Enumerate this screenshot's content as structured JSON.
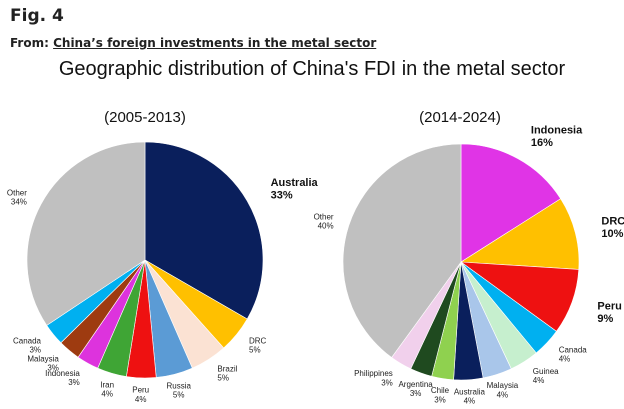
{
  "header": {
    "fig_label": "Fig. 4",
    "from_prefix": "From:",
    "from_link": "China’s foreign investments in the metal sector"
  },
  "chart_data": [
    {
      "type": "pie",
      "title": "Geographic distribution of China's FDI in the metal sector",
      "subtitle": "(2005-2013)",
      "slices": [
        {
          "label": "Australia",
          "pct_label": "33%",
          "value": 33,
          "color": "#0a1f5c",
          "emphasis": true
        },
        {
          "label": "DRC",
          "pct_label": "5%",
          "value": 5,
          "color": "#ffc000",
          "emphasis": false
        },
        {
          "label": "Brazil",
          "pct_label": "5%",
          "value": 5,
          "color": "#fbe2d3",
          "emphasis": false
        },
        {
          "label": "Russia",
          "pct_label": "5%",
          "value": 5,
          "color": "#5b9bd5",
          "emphasis": false
        },
        {
          "label": "Peru",
          "pct_label": "4%",
          "value": 4,
          "color": "#ee1111",
          "emphasis": false
        },
        {
          "label": "Iran",
          "pct_label": "4%",
          "value": 4,
          "color": "#3fa535",
          "emphasis": false
        },
        {
          "label": "Indonesia",
          "pct_label": "3%",
          "value": 3,
          "color": "#dd33dd",
          "emphasis": false
        },
        {
          "label": "Malaysia",
          "pct_label": "3%",
          "value": 3,
          "color": "#9e3b10",
          "emphasis": false
        },
        {
          "label": "Canada",
          "pct_label": "3%",
          "value": 3,
          "color": "#00b0f0",
          "emphasis": false
        },
        {
          "label": "Other",
          "pct_label": "34%",
          "value": 34,
          "color": "#c0c0c0",
          "emphasis": false
        }
      ]
    },
    {
      "type": "pie",
      "title": "Geographic distribution of China's FDI in the metal sector",
      "subtitle": "(2014-2024)",
      "slices": [
        {
          "label": "Indonesia",
          "pct_label": "16%",
          "value": 16,
          "color": "#e034e6",
          "emphasis": true
        },
        {
          "label": "DRC",
          "pct_label": "10%",
          "value": 10,
          "color": "#ffc000",
          "emphasis": true
        },
        {
          "label": "Peru",
          "pct_label": "9%",
          "value": 9,
          "color": "#ee1111",
          "emphasis": true
        },
        {
          "label": "Canada",
          "pct_label": "4%",
          "value": 4,
          "color": "#00b0f0",
          "emphasis": false
        },
        {
          "label": "Guinea",
          "pct_label": "4%",
          "value": 4,
          "color": "#c6efce",
          "emphasis": false
        },
        {
          "label": "Malaysia",
          "pct_label": "4%",
          "value": 4,
          "color": "#a9c6ea",
          "emphasis": false
        },
        {
          "label": "Australia",
          "pct_label": "4%",
          "value": 4,
          "color": "#0a1f5c",
          "emphasis": false
        },
        {
          "label": "Chile",
          "pct_label": "3%",
          "value": 3,
          "color": "#8fd14f",
          "emphasis": false
        },
        {
          "label": "Argentina",
          "pct_label": "3%",
          "value": 3,
          "color": "#1f4a1f",
          "emphasis": false
        },
        {
          "label": "Philippines",
          "pct_label": "3%",
          "value": 3,
          "color": "#f1d0ec",
          "emphasis": false
        },
        {
          "label": "Other",
          "pct_label": "40%",
          "value": 40,
          "color": "#c0c0c0",
          "emphasis": false
        }
      ]
    }
  ]
}
